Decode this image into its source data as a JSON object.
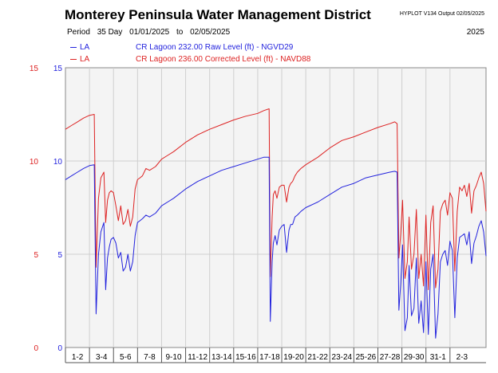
{
  "header": {
    "title": "Monterey Peninsula Water Management District",
    "version": "HYPLOT V134  Output 02/05/2025",
    "period_label": "Period",
    "period_days": "35 Day",
    "start_date": "01/01/2025",
    "to_label": "to",
    "end_date": "02/05/2025",
    "year": "2025"
  },
  "legend": [
    {
      "code": "LA",
      "description": "CR Lagoon  232.00 Raw Level (ft) - NGVD29",
      "color": "#2222dd"
    },
    {
      "code": "LA",
      "description": "CR Lagoon  236.00 Corrected Level (ft) - NAVD88",
      "color": "#dd2222"
    }
  ],
  "chart_data": {
    "type": "line",
    "x_range_days": [
      1,
      36
    ],
    "ylim": [
      0,
      15
    ],
    "left_ticks": [
      "0",
      "5",
      "10",
      "15"
    ],
    "right_ticks": [
      "0",
      "5",
      "10",
      "15"
    ],
    "grid": true,
    "categories": [
      "1-2",
      "3-4",
      "5-6",
      "7-8",
      "9-10",
      "11-12",
      "13-14",
      "15-16",
      "17-18",
      "19-20",
      "21-22",
      "23-24",
      "25-26",
      "27-28",
      "29-30",
      "31-1",
      "2-3"
    ],
    "series": [
      {
        "name": "CR Lagoon  232.00 Raw Level (ft) - NGVD29",
        "color": "#2222dd",
        "x": [
          1,
          1.5,
          2,
          2.5,
          3,
          3.4,
          3.55,
          3.75,
          3.95,
          4.2,
          4.35,
          4.5,
          4.65,
          4.8,
          5.0,
          5.2,
          5.4,
          5.6,
          5.8,
          6.0,
          6.2,
          6.4,
          6.6,
          6.8,
          7.0,
          7.2,
          7.4,
          7.7,
          8.0,
          8.5,
          9.0,
          9.5,
          10,
          11,
          12,
          13,
          14,
          15,
          16,
          17,
          17.5,
          17.95,
          18.05,
          18.2,
          18.3,
          18.45,
          18.6,
          18.8,
          19.0,
          19.2,
          19.4,
          19.6,
          19.75,
          19.9,
          20.1,
          20.3,
          20.6,
          21,
          22,
          23,
          24,
          25,
          26,
          27,
          28,
          28.4,
          28.6,
          28.75,
          28.9,
          29.05,
          29.25,
          29.45,
          29.6,
          29.8,
          30.0,
          30.2,
          30.4,
          30.6,
          30.8,
          31.0,
          31.2,
          31.4,
          31.6,
          31.8,
          32.0,
          32.2,
          32.4,
          32.6,
          32.8,
          33.0,
          33.2,
          33.4,
          33.6,
          33.8,
          34.0,
          34.2,
          34.4,
          34.6,
          34.8,
          35.0,
          35.2,
          35.4,
          35.6,
          35.8,
          36.0
        ],
        "values": [
          9.0,
          9.2,
          9.4,
          9.6,
          9.75,
          9.8,
          1.8,
          5.0,
          6.2,
          6.7,
          3.1,
          4.8,
          5.4,
          5.8,
          5.9,
          5.6,
          4.8,
          5.1,
          4.1,
          4.3,
          5.0,
          4.1,
          4.6,
          6.0,
          6.7,
          6.8,
          6.9,
          7.1,
          7.0,
          7.2,
          7.6,
          7.8,
          8.0,
          8.5,
          8.9,
          9.2,
          9.5,
          9.7,
          9.9,
          10.1,
          10.2,
          10.2,
          1.4,
          4.6,
          5.6,
          6.0,
          5.5,
          6.3,
          6.5,
          6.6,
          5.1,
          6.3,
          6.6,
          6.6,
          7.0,
          7.1,
          7.3,
          7.5,
          7.8,
          8.2,
          8.6,
          8.8,
          9.1,
          9.25,
          9.4,
          9.45,
          9.4,
          2.0,
          3.4,
          5.5,
          0.9,
          1.6,
          4.4,
          1.7,
          2.1,
          4.8,
          1.3,
          2.5,
          0.8,
          4.6,
          0.7,
          4.2,
          5.0,
          0.5,
          1.8,
          4.6,
          5.0,
          5.2,
          4.4,
          5.7,
          5.2,
          1.6,
          4.8,
          5.9,
          6.0,
          6.1,
          5.5,
          6.2,
          4.5,
          5.6,
          6.0,
          6.5,
          6.8,
          6.2,
          4.9
        ]
      },
      {
        "name": "CR Lagoon  236.00 Corrected Level (ft) - NAVD88",
        "color": "#dd2222",
        "x": [
          1,
          1.5,
          2,
          2.5,
          3,
          3.4,
          3.55,
          3.75,
          3.95,
          4.2,
          4.35,
          4.5,
          4.65,
          4.8,
          5.0,
          5.2,
          5.4,
          5.6,
          5.8,
          6.0,
          6.2,
          6.4,
          6.6,
          6.8,
          7.0,
          7.2,
          7.4,
          7.7,
          8.0,
          8.5,
          9.0,
          9.5,
          10,
          11,
          12,
          13,
          14,
          15,
          16,
          17,
          17.5,
          17.95,
          18.05,
          18.2,
          18.3,
          18.45,
          18.6,
          18.8,
          19.0,
          19.2,
          19.4,
          19.6,
          19.75,
          19.9,
          20.1,
          20.3,
          20.6,
          21,
          22,
          23,
          24,
          25,
          26,
          27,
          28,
          28.4,
          28.6,
          28.75,
          28.9,
          29.05,
          29.25,
          29.45,
          29.6,
          29.8,
          30.0,
          30.2,
          30.4,
          30.6,
          30.8,
          31.0,
          31.2,
          31.4,
          31.6,
          31.8,
          32.0,
          32.2,
          32.4,
          32.6,
          32.8,
          33.0,
          33.2,
          33.4,
          33.6,
          33.8,
          34.0,
          34.2,
          34.4,
          34.6,
          34.8,
          35.0,
          35.2,
          35.4,
          35.6,
          35.8,
          36.0
        ],
        "values": [
          11.7,
          11.9,
          12.1,
          12.3,
          12.45,
          12.5,
          4.3,
          8.0,
          9.1,
          9.4,
          6.7,
          7.9,
          8.3,
          8.4,
          8.3,
          7.6,
          6.8,
          7.6,
          6.6,
          6.8,
          7.4,
          6.5,
          7.0,
          8.5,
          9.0,
          9.1,
          9.2,
          9.6,
          9.5,
          9.7,
          10.1,
          10.3,
          10.5,
          11.0,
          11.4,
          11.7,
          11.95,
          12.2,
          12.4,
          12.55,
          12.7,
          12.8,
          3.8,
          7.0,
          8.2,
          8.4,
          8.0,
          8.6,
          8.7,
          8.7,
          7.8,
          8.6,
          8.8,
          8.9,
          9.2,
          9.4,
          9.6,
          9.8,
          10.2,
          10.7,
          11.1,
          11.3,
          11.55,
          11.8,
          12.0,
          12.1,
          12.0,
          4.8,
          6.1,
          7.9,
          3.7,
          4.6,
          7.0,
          4.2,
          5.0,
          7.4,
          3.7,
          5.0,
          3.3,
          7.1,
          3.1,
          6.7,
          7.6,
          3.2,
          4.2,
          7.3,
          7.7,
          7.9,
          7.1,
          8.3,
          8.0,
          4.1,
          7.3,
          8.6,
          8.4,
          8.7,
          8.1,
          8.8,
          7.2,
          8.4,
          8.7,
          9.1,
          9.4,
          8.8,
          7.3
        ]
      }
    ]
  }
}
